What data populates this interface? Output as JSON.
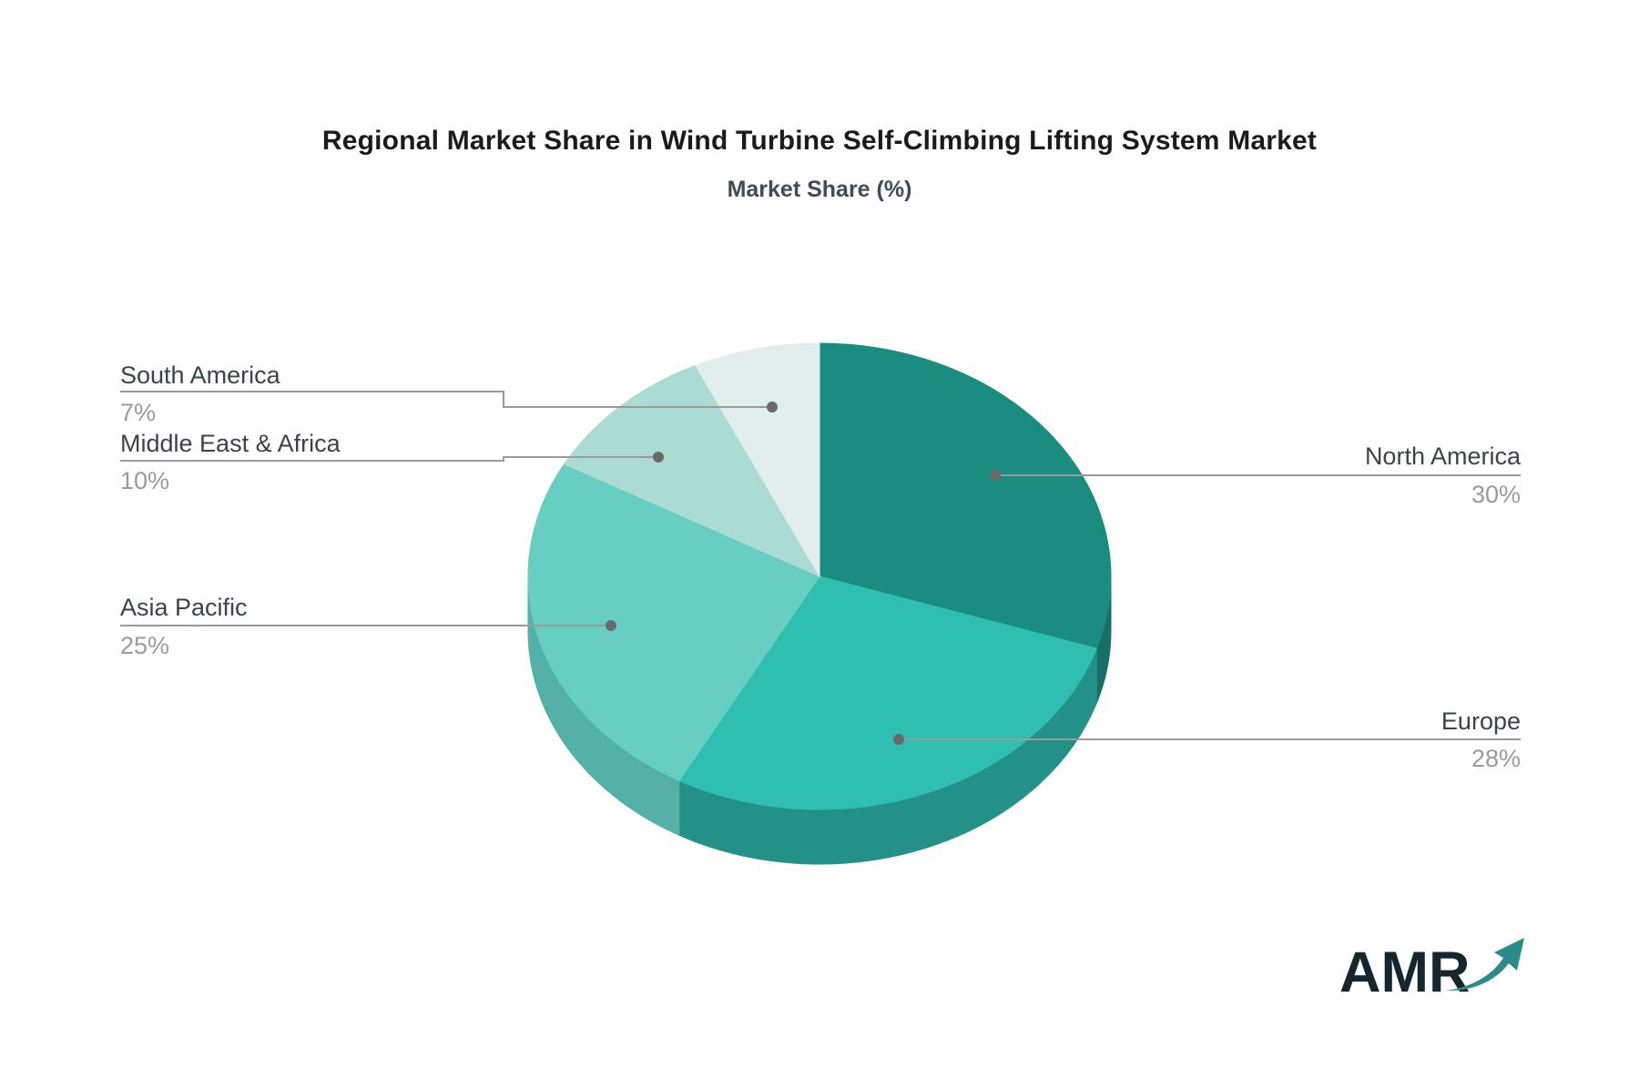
{
  "title": "Regional Market Share in Wind Turbine Self-Climbing Lifting System Market",
  "subtitle": "Market Share (%)",
  "chart_data": {
    "type": "pie",
    "style": "3d-pie",
    "title": "Regional Market Share in Wind Turbine Self-Climbing Lifting System Market",
    "subtitle": "Market Share (%)",
    "unit": "%",
    "start_angle": "12-o-clock, clockwise",
    "legend_position": "none (callout labels with leader lines)",
    "slices": [
      {
        "label": "North America",
        "value": 30,
        "display": "30%",
        "color": "#1a8c80",
        "side_color": "#156f66"
      },
      {
        "label": "Europe",
        "value": 28,
        "display": "28%",
        "color": "#2fbfb0",
        "side_color": "#249188"
      },
      {
        "label": "Asia Pacific",
        "value": 25,
        "display": "25%",
        "color": "#67cfc2",
        "side_color": "#53b1a7"
      },
      {
        "label": "Middle East & Africa",
        "value": 10,
        "display": "10%",
        "color": "#aadcd3",
        "side_color": "#8cc5bc"
      },
      {
        "label": "South America",
        "value": 7,
        "display": "7%",
        "color": "#e1eeec",
        "side_color": "#c3dad6"
      }
    ]
  },
  "colors": {
    "leader_line": "#9a9a9a",
    "dot": "#6a6a6a",
    "label_text": "#3a4449",
    "value_text": "#9b9b9b",
    "title_text": "#1b1b1b",
    "subtitle_text": "#3f4d56",
    "logo_text": "#16262e",
    "logo_arrow": "#2d8a8a"
  },
  "logo": {
    "text": "AMR"
  }
}
